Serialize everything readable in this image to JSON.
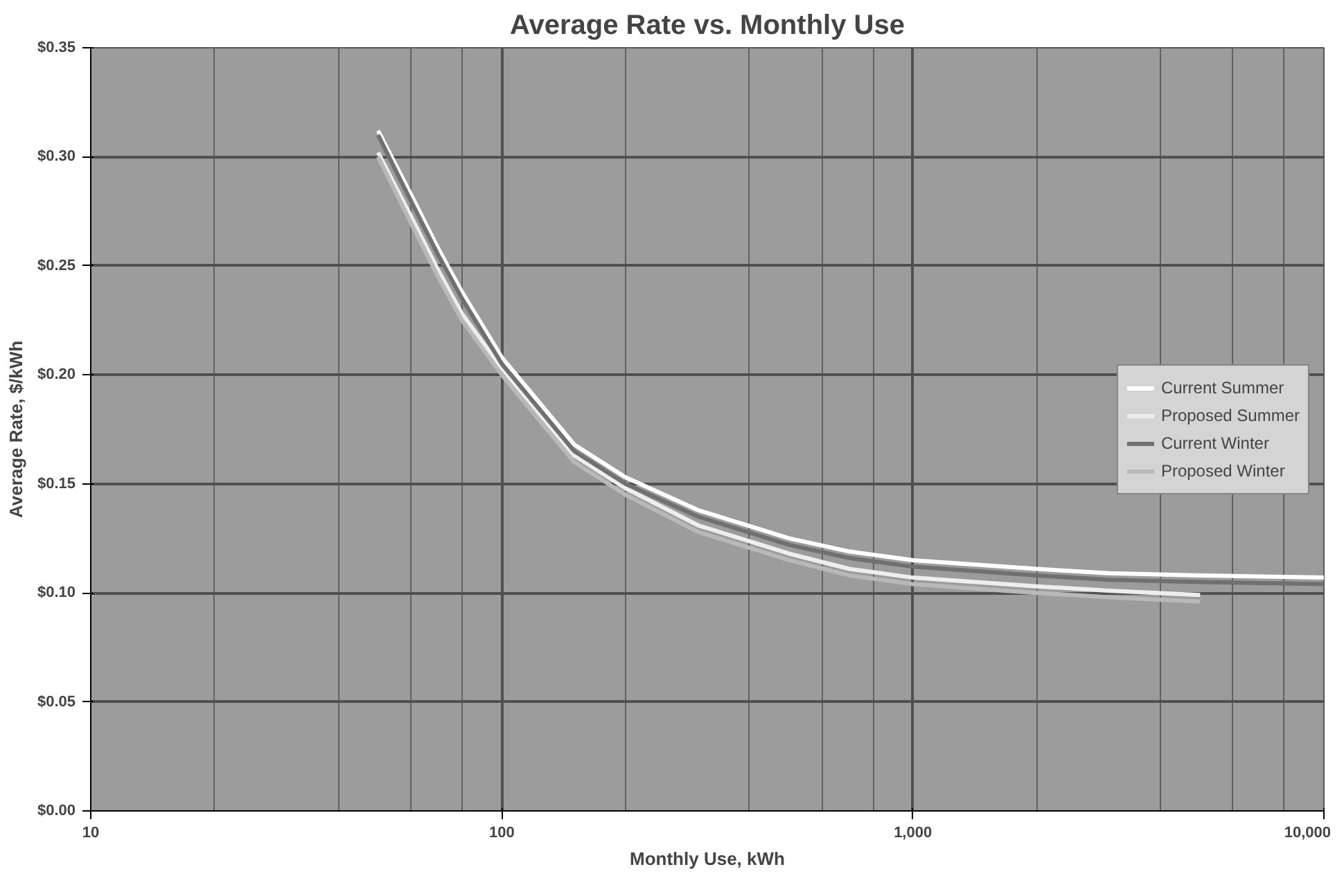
{
  "chart_data": {
    "type": "line",
    "title": "Average Rate vs. Monthly Use",
    "xlabel": "Monthly Use, kWh",
    "ylabel": "Average Rate, $/kWh",
    "log": "x",
    "xlim": [
      10,
      10000
    ],
    "xticks": [
      10,
      100,
      {
        "value": 1000,
        "label": "1,000"
      },
      {
        "value": 10000,
        "label": "10,000"
      }
    ],
    "ylim": [
      0,
      0.35
    ],
    "yticks": [
      {
        "value": 0,
        "label": "$0.00"
      },
      {
        "value": 0.05,
        "label": "$0.05"
      },
      {
        "value": 0.1,
        "label": "$0.10"
      },
      {
        "value": 0.15,
        "label": "$0.15"
      },
      {
        "value": 0.2,
        "label": "$0.20"
      },
      {
        "value": 0.25,
        "label": "$0.25"
      },
      {
        "value": 0.3,
        "label": "$0.30"
      },
      {
        "value": 0.35,
        "label": "$0.35"
      }
    ],
    "grid": true,
    "legend": "right",
    "x": [
      50,
      60,
      70,
      80,
      100,
      150,
      200,
      300,
      500,
      700,
      1000,
      2000,
      3000,
      5000,
      10000
    ],
    "series": [
      {
        "name": "Current Summer",
        "color": "#ffffff",
        "values": [
          0.312,
          0.283,
          0.258,
          0.238,
          0.208,
          0.168,
          0.153,
          0.138,
          0.125,
          0.119,
          0.115,
          0.111,
          0.109,
          0.108,
          0.107
        ]
      },
      {
        "name": "Proposed Summer",
        "color": "#eeeeee",
        "values": [
          0.302,
          0.273,
          0.248,
          0.228,
          0.203,
          0.163,
          0.148,
          0.131,
          0.118,
          0.111,
          0.107,
          0.103,
          0.101,
          0.099,
          null
        ]
      },
      {
        "name": "Current Winter",
        "color": "#707070",
        "values": [
          0.31,
          0.28,
          0.255,
          0.235,
          0.205,
          0.165,
          0.15,
          0.135,
          0.122,
          0.116,
          0.112,
          0.108,
          0.106,
          0.105,
          0.104
        ]
      },
      {
        "name": "Proposed Winter",
        "color": "#b8b8b8",
        "values": [
          0.3,
          0.27,
          0.245,
          0.225,
          0.2,
          0.16,
          0.145,
          0.128,
          0.115,
          0.108,
          0.104,
          0.1,
          0.098,
          0.096,
          null
        ]
      }
    ]
  }
}
